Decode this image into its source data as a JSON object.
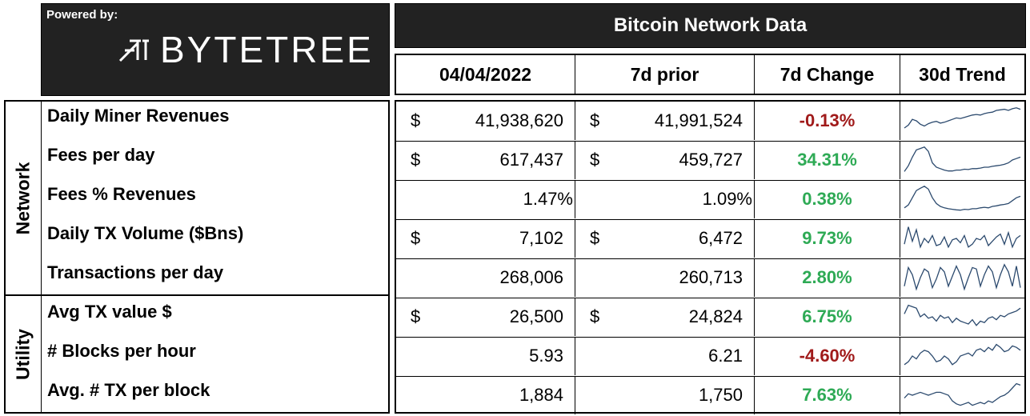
{
  "branding": {
    "powered_by": "Powered by:",
    "logo": "BYTETREE"
  },
  "title": "Bitcoin Network Data",
  "columns": {
    "date": "04/04/2022",
    "prior": "7d prior",
    "change": "7d Change",
    "trend": "30d Trend"
  },
  "colors": {
    "negative": "#a01a1a",
    "positive": "#2eaa55",
    "header_bg": "#222222"
  },
  "groups": [
    {
      "label": "Network",
      "metrics": [
        "Daily Miner Revenues",
        "Fees per day",
        "Fees % Revenues",
        "Daily TX Volume ($Bns)",
        "Transactions per day"
      ]
    },
    {
      "label": "Utility",
      "metrics": [
        "Avg TX value $",
        "# Blocks per hour",
        "Avg. # TX per block"
      ]
    }
  ],
  "rows": [
    {
      "cur_current": "$",
      "current": "41,938,620",
      "cur_prior": "$",
      "prior": "41,991,524",
      "change": "-0.13%",
      "direction": "negative",
      "trend": [
        0.25,
        0.35,
        0.55,
        0.5,
        0.38,
        0.32,
        0.4,
        0.45,
        0.48,
        0.42,
        0.45,
        0.5,
        0.55,
        0.6,
        0.58,
        0.62,
        0.66,
        0.7,
        0.72,
        0.7,
        0.75,
        0.78,
        0.8,
        0.86,
        0.88,
        0.9,
        0.86,
        0.92,
        0.95,
        0.9
      ]
    },
    {
      "cur_current": "$",
      "current": "617,437",
      "cur_prior": "$",
      "prior": "459,727",
      "change": "34.31%",
      "direction": "positive",
      "trend": [
        0.1,
        0.3,
        0.6,
        0.85,
        0.9,
        0.95,
        0.8,
        0.4,
        0.25,
        0.2,
        0.15,
        0.12,
        0.12,
        0.15,
        0.15,
        0.18,
        0.17,
        0.2,
        0.2,
        0.22,
        0.25,
        0.25,
        0.28,
        0.3,
        0.32,
        0.35,
        0.4,
        0.5,
        0.55,
        0.6
      ]
    },
    {
      "cur_current": "",
      "current": "1.47%",
      "cur_prior": "",
      "prior": "1.09%",
      "change": "0.38%",
      "direction": "positive",
      "trend": [
        0.2,
        0.3,
        0.55,
        0.8,
        0.88,
        0.95,
        0.85,
        0.55,
        0.35,
        0.25,
        0.2,
        0.17,
        0.15,
        0.13,
        0.12,
        0.15,
        0.14,
        0.17,
        0.17,
        0.2,
        0.22,
        0.2,
        0.25,
        0.27,
        0.3,
        0.32,
        0.35,
        0.45,
        0.55,
        0.6
      ]
    },
    {
      "cur_current": "$",
      "current": "7,102",
      "cur_prior": "$",
      "prior": "6,472",
      "change": "9.73%",
      "direction": "positive",
      "trend": [
        0.3,
        0.9,
        0.4,
        0.8,
        0.2,
        0.5,
        0.35,
        0.6,
        0.25,
        0.3,
        0.55,
        0.2,
        0.45,
        0.5,
        0.35,
        0.6,
        0.2,
        0.3,
        0.5,
        0.45,
        0.6,
        0.25,
        0.4,
        0.55,
        0.65,
        0.3,
        0.7,
        0.2,
        0.5,
        0.6
      ]
    },
    {
      "cur_current": "",
      "current": "268,006",
      "cur_prior": "",
      "prior": "260,713",
      "change": "2.80%",
      "direction": "positive",
      "trend": [
        0.2,
        0.85,
        0.6,
        0.1,
        0.5,
        0.8,
        0.7,
        0.15,
        0.45,
        0.85,
        0.7,
        0.2,
        0.55,
        0.9,
        0.6,
        0.1,
        0.5,
        0.85,
        0.8,
        0.2,
        0.6,
        0.9,
        0.7,
        0.15,
        0.6,
        0.95,
        0.7,
        0.2,
        0.9,
        0.15
      ]
    },
    {
      "cur_current": "$",
      "current": "26,500",
      "cur_prior": "$",
      "prior": "24,824",
      "change": "6.75%",
      "direction": "positive",
      "trend": [
        0.6,
        0.9,
        0.85,
        0.8,
        0.5,
        0.6,
        0.45,
        0.5,
        0.35,
        0.55,
        0.45,
        0.5,
        0.3,
        0.45,
        0.35,
        0.3,
        0.25,
        0.4,
        0.2,
        0.35,
        0.3,
        0.45,
        0.5,
        0.4,
        0.55,
        0.5,
        0.6,
        0.65,
        0.7,
        0.8
      ]
    },
    {
      "cur_current": "",
      "current": "5.93",
      "cur_prior": "",
      "prior": "6.21",
      "change": "-4.60%",
      "direction": "negative",
      "trend": [
        0.2,
        0.3,
        0.5,
        0.4,
        0.6,
        0.7,
        0.65,
        0.5,
        0.3,
        0.35,
        0.5,
        0.4,
        0.2,
        0.3,
        0.5,
        0.55,
        0.6,
        0.5,
        0.7,
        0.75,
        0.65,
        0.8,
        0.7,
        0.9,
        0.8,
        0.65,
        0.7,
        0.85,
        0.8,
        0.7
      ]
    },
    {
      "cur_current": "",
      "current": "1,884",
      "cur_prior": "",
      "prior": "1,750",
      "change": "7.63%",
      "direction": "positive",
      "trend": [
        0.4,
        0.55,
        0.5,
        0.55,
        0.6,
        0.55,
        0.5,
        0.55,
        0.6,
        0.6,
        0.55,
        0.5,
        0.3,
        0.2,
        0.15,
        0.2,
        0.25,
        0.15,
        0.2,
        0.25,
        0.2,
        0.3,
        0.25,
        0.35,
        0.45,
        0.5,
        0.6,
        0.75,
        0.9,
        0.85
      ]
    }
  ]
}
